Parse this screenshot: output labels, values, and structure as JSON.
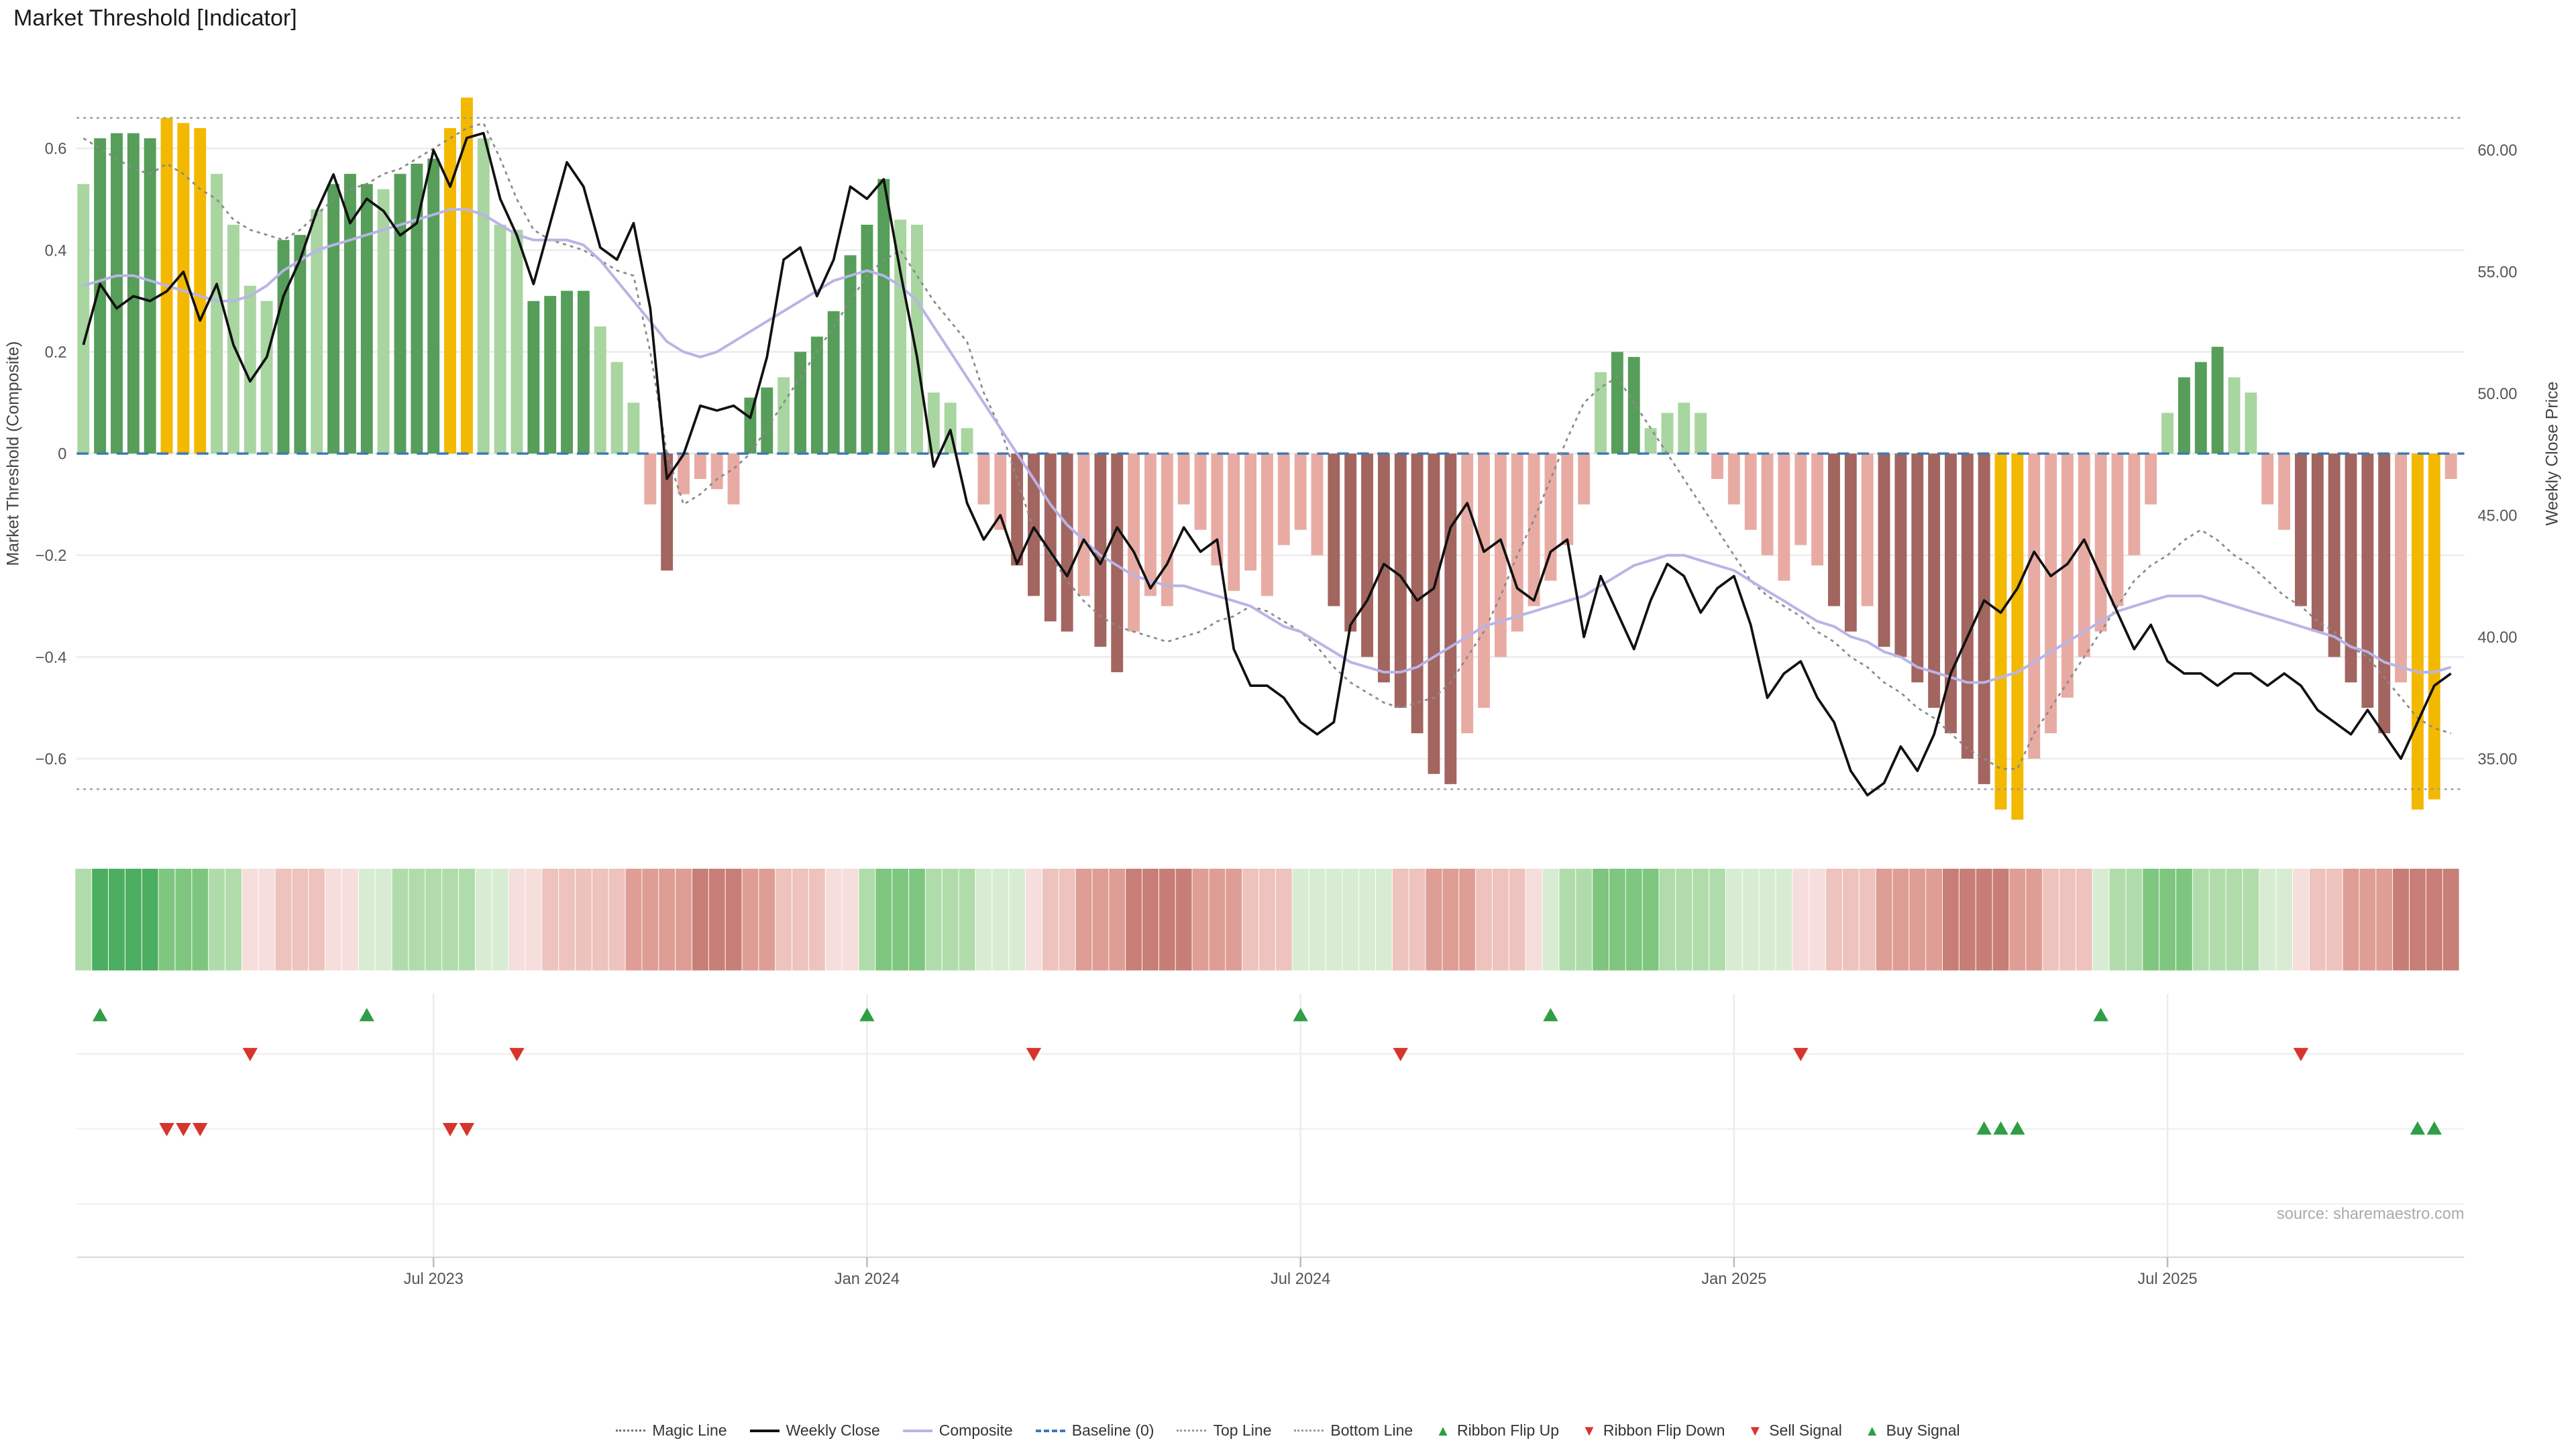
{
  "title": "Market Threshold [Indicator]",
  "source_note": "source: sharemaestro.com",
  "colors": {
    "bar_light_green": "#a8d5a0",
    "bar_dark_green": "#569e5a",
    "bar_gold": "#f3b800",
    "bar_light_red": "#e8aba3",
    "bar_dark_red": "#a3655f",
    "weekly_close": "#111111",
    "composite": "#b9b4e6",
    "magic": "#8a8a8a",
    "baseline": "#3d7ab5",
    "top_bottom": "#9a9a9a",
    "signal_green": "#2f9e44",
    "signal_red": "#d7342c",
    "ribbon_greens": [
      "#d8ecd4",
      "#b0dcab",
      "#7ec67f",
      "#4cae60"
    ],
    "ribbon_reds": [
      "#f5dedb",
      "#eec3bd",
      "#de9d95",
      "#c77e76"
    ],
    "grid": "#ececec",
    "axis_text": "#555555",
    "source_text": "#aaaaaa"
  },
  "chart_data": {
    "type": "combo",
    "x_unit": "week",
    "x_ticks": [
      {
        "label": "Jul 2023",
        "week": 21
      },
      {
        "label": "Jan 2024",
        "week": 47
      },
      {
        "label": "Jul 2024",
        "week": 73
      },
      {
        "label": "Jan 2025",
        "week": 99
      },
      {
        "label": "Jul 2025",
        "week": 125
      }
    ],
    "left_axis": {
      "title": "Market Threshold (Composite)",
      "ticks": [
        {
          "label": "0.6",
          "value": 0.6
        },
        {
          "label": "0.4",
          "value": 0.4
        },
        {
          "label": "0.2",
          "value": 0.2
        },
        {
          "label": "0",
          "value": 0
        },
        {
          "label": "−0.2",
          "value": -0.2
        },
        {
          "label": "−0.4",
          "value": -0.4
        },
        {
          "label": "−0.6",
          "value": -0.6
        }
      ]
    },
    "right_axis": {
      "title": "Weekly Close Price",
      "ticks": [
        {
          "label": "60.00",
          "value": 60
        },
        {
          "label": "55.00",
          "value": 55
        },
        {
          "label": "50.00",
          "value": 50
        },
        {
          "label": "45.00",
          "value": 45
        },
        {
          "label": "40.00",
          "value": 40
        },
        {
          "label": "35.00",
          "value": 35
        }
      ]
    },
    "top_line_value": 0.66,
    "bottom_line_value": -0.66,
    "baseline_value": 0,
    "series": {
      "threshold_bars": {
        "name": "Market Threshold",
        "values": [
          0.53,
          0.62,
          0.63,
          0.63,
          0.62,
          0.66,
          0.65,
          0.64,
          0.55,
          0.45,
          0.33,
          0.3,
          0.42,
          0.43,
          0.48,
          0.53,
          0.55,
          0.53,
          0.52,
          0.55,
          0.57,
          0.58,
          0.64,
          0.7,
          0.62,
          0.45,
          0.44,
          0.3,
          0.31,
          0.32,
          0.32,
          0.25,
          0.18,
          0.1,
          -0.1,
          -0.23,
          -0.08,
          -0.05,
          -0.07,
          -0.1,
          0.11,
          0.13,
          0.15,
          0.2,
          0.23,
          0.28,
          0.39,
          0.45,
          0.54,
          0.46,
          0.45,
          0.12,
          0.1,
          0.05,
          -0.1,
          -0.15,
          -0.22,
          -0.28,
          -0.33,
          -0.35,
          -0.28,
          -0.38,
          -0.43,
          -0.35,
          -0.28,
          -0.3,
          -0.1,
          -0.15,
          -0.22,
          -0.27,
          -0.23,
          -0.28,
          -0.18,
          -0.15,
          -0.2,
          -0.3,
          -0.35,
          -0.4,
          -0.45,
          -0.5,
          -0.55,
          -0.63,
          -0.65,
          -0.55,
          -0.5,
          -0.4,
          -0.35,
          -0.3,
          -0.25,
          -0.18,
          -0.1,
          0.16,
          0.2,
          0.19,
          0.05,
          0.08,
          0.1,
          0.08,
          -0.05,
          -0.1,
          -0.15,
          -0.2,
          -0.25,
          -0.18,
          -0.22,
          -0.3,
          -0.35,
          -0.3,
          -0.38,
          -0.4,
          -0.45,
          -0.5,
          -0.55,
          -0.6,
          -0.65,
          -0.7,
          -0.72,
          -0.6,
          -0.55,
          -0.48,
          -0.4,
          -0.35,
          -0.3,
          -0.2,
          -0.1,
          0.08,
          0.15,
          0.18,
          0.21,
          0.15,
          0.12,
          -0.1,
          -0.15,
          -0.3,
          -0.35,
          -0.4,
          -0.45,
          -0.5,
          -0.55,
          -0.45,
          -0.7,
          -0.68,
          -0.05
        ],
        "colors": [
          "lg",
          "dg",
          "dg",
          "dg",
          "dg",
          "gold",
          "gold",
          "gold",
          "lg",
          "lg",
          "lg",
          "lg",
          "dg",
          "dg",
          "lg",
          "dg",
          "dg",
          "dg",
          "lg",
          "dg",
          "dg",
          "dg",
          "gold",
          "gold",
          "lg",
          "lg",
          "lg",
          "dg",
          "dg",
          "dg",
          "dg",
          "lg",
          "lg",
          "lg",
          "lr",
          "dr",
          "lr",
          "lr",
          "lr",
          "lr",
          "dg",
          "dg",
          "lg",
          "dg",
          "dg",
          "dg",
          "dg",
          "dg",
          "dg",
          "lg",
          "lg",
          "lg",
          "lg",
          "lg",
          "lr",
          "lr",
          "dr",
          "dr",
          "dr",
          "dr",
          "lr",
          "dr",
          "dr",
          "lr",
          "lr",
          "lr",
          "lr",
          "lr",
          "lr",
          "lr",
          "lr",
          "lr",
          "lr",
          "lr",
          "lr",
          "dr",
          "dr",
          "dr",
          "dr",
          "dr",
          "dr",
          "dr",
          "dr",
          "lr",
          "lr",
          "lr",
          "lr",
          "lr",
          "lr",
          "lr",
          "lr",
          "lg",
          "dg",
          "dg",
          "lg",
          "lg",
          "lg",
          "lg",
          "lr",
          "lr",
          "lr",
          "lr",
          "lr",
          "lr",
          "lr",
          "dr",
          "dr",
          "lr",
          "dr",
          "dr",
          "dr",
          "dr",
          "dr",
          "dr",
          "dr",
          "gold",
          "gold",
          "lr",
          "lr",
          "lr",
          "lr",
          "lr",
          "lr",
          "lr",
          "lr",
          "lg",
          "dg",
          "dg",
          "dg",
          "lg",
          "lg",
          "lr",
          "lr",
          "dr",
          "dr",
          "dr",
          "dr",
          "dr",
          "dr",
          "lr",
          "gold",
          "gold",
          "lr"
        ]
      },
      "weekly_close": {
        "name": "Weekly Close",
        "axis": "right",
        "values": [
          52.0,
          54.5,
          53.5,
          54.0,
          53.8,
          54.2,
          55.0,
          53.0,
          54.5,
          52.0,
          50.5,
          51.5,
          54.0,
          55.5,
          57.5,
          59.0,
          57.0,
          58.0,
          57.5,
          56.5,
          57.0,
          60.0,
          58.5,
          60.5,
          60.7,
          58.0,
          56.5,
          54.5,
          57.0,
          59.5,
          58.5,
          56.0,
          55.5,
          57.0,
          53.5,
          46.5,
          47.5,
          49.5,
          49.3,
          49.5,
          49.0,
          51.5,
          55.5,
          56.0,
          54.0,
          55.5,
          58.5,
          58.0,
          58.8,
          55.0,
          51.5,
          47.0,
          48.5,
          45.5,
          44.0,
          45.0,
          43.0,
          44.5,
          43.5,
          42.5,
          44.0,
          43.0,
          44.5,
          43.5,
          42.0,
          43.0,
          44.5,
          43.5,
          44.0,
          39.5,
          38.0,
          38.0,
          37.5,
          36.5,
          36.0,
          36.5,
          40.5,
          41.5,
          43.0,
          42.5,
          41.5,
          42.0,
          44.5,
          45.5,
          43.5,
          44.0,
          42.0,
          41.5,
          43.5,
          44.0,
          40.0,
          42.5,
          41.0,
          39.5,
          41.5,
          43.0,
          42.5,
          41.0,
          42.0,
          42.5,
          40.5,
          37.5,
          38.5,
          39.0,
          37.5,
          36.5,
          34.5,
          33.5,
          34.0,
          35.5,
          34.5,
          36.0,
          38.5,
          40.0,
          41.5,
          41.0,
          42.0,
          43.5,
          42.5,
          43.0,
          44.0,
          42.5,
          41.0,
          39.5,
          40.5,
          39.0,
          38.5,
          38.5,
          38.0,
          38.5,
          38.5,
          38.0,
          38.5,
          38.0,
          37.0,
          36.5,
          36.0,
          37.0,
          36.0,
          35.0,
          36.5,
          38.0,
          38.5
        ]
      },
      "composite": {
        "name": "Composite",
        "values": [
          0.33,
          0.34,
          0.35,
          0.35,
          0.34,
          0.33,
          0.32,
          0.31,
          0.3,
          0.3,
          0.31,
          0.33,
          0.36,
          0.38,
          0.4,
          0.41,
          0.42,
          0.43,
          0.44,
          0.45,
          0.46,
          0.47,
          0.48,
          0.48,
          0.47,
          0.45,
          0.43,
          0.42,
          0.42,
          0.42,
          0.41,
          0.38,
          0.34,
          0.3,
          0.26,
          0.22,
          0.2,
          0.19,
          0.2,
          0.22,
          0.24,
          0.26,
          0.28,
          0.3,
          0.32,
          0.34,
          0.35,
          0.36,
          0.35,
          0.33,
          0.3,
          0.25,
          0.2,
          0.15,
          0.1,
          0.05,
          0.0,
          -0.05,
          -0.1,
          -0.14,
          -0.17,
          -0.2,
          -0.22,
          -0.24,
          -0.25,
          -0.26,
          -0.26,
          -0.27,
          -0.28,
          -0.29,
          -0.3,
          -0.32,
          -0.34,
          -0.35,
          -0.37,
          -0.39,
          -0.41,
          -0.42,
          -0.43,
          -0.43,
          -0.42,
          -0.4,
          -0.38,
          -0.36,
          -0.34,
          -0.33,
          -0.32,
          -0.31,
          -0.3,
          -0.29,
          -0.28,
          -0.26,
          -0.24,
          -0.22,
          -0.21,
          -0.2,
          -0.2,
          -0.21,
          -0.22,
          -0.23,
          -0.25,
          -0.27,
          -0.29,
          -0.31,
          -0.33,
          -0.34,
          -0.36,
          -0.37,
          -0.39,
          -0.4,
          -0.42,
          -0.43,
          -0.44,
          -0.45,
          -0.45,
          -0.44,
          -0.43,
          -0.41,
          -0.39,
          -0.37,
          -0.35,
          -0.33,
          -0.31,
          -0.3,
          -0.29,
          -0.28,
          -0.28,
          -0.28,
          -0.29,
          -0.3,
          -0.31,
          -0.32,
          -0.33,
          -0.34,
          -0.35,
          -0.36,
          -0.38,
          -0.39,
          -0.41,
          -0.42,
          -0.43,
          -0.43,
          -0.42
        ]
      },
      "magic_line": {
        "name": "Magic Line",
        "values": [
          0.62,
          0.6,
          0.58,
          0.56,
          0.55,
          0.57,
          0.55,
          0.52,
          0.5,
          0.46,
          0.44,
          0.43,
          0.42,
          0.44,
          0.47,
          0.5,
          0.52,
          0.53,
          0.55,
          0.56,
          0.58,
          0.6,
          0.62,
          0.64,
          0.65,
          0.58,
          0.5,
          0.44,
          0.42,
          0.41,
          0.4,
          0.38,
          0.36,
          0.35,
          0.2,
          0.0,
          -0.1,
          -0.08,
          -0.05,
          -0.03,
          0.0,
          0.05,
          0.1,
          0.15,
          0.2,
          0.25,
          0.3,
          0.35,
          0.38,
          0.4,
          0.35,
          0.3,
          0.26,
          0.22,
          0.12,
          0.05,
          -0.05,
          -0.15,
          -0.2,
          -0.25,
          -0.29,
          -0.32,
          -0.34,
          -0.35,
          -0.36,
          -0.37,
          -0.36,
          -0.35,
          -0.33,
          -0.32,
          -0.3,
          -0.31,
          -0.33,
          -0.35,
          -0.38,
          -0.42,
          -0.45,
          -0.47,
          -0.49,
          -0.5,
          -0.49,
          -0.48,
          -0.45,
          -0.4,
          -0.35,
          -0.28,
          -0.2,
          -0.13,
          -0.05,
          0.03,
          0.1,
          0.13,
          0.15,
          0.1,
          0.05,
          0.0,
          -0.05,
          -0.1,
          -0.15,
          -0.2,
          -0.25,
          -0.28,
          -0.3,
          -0.32,
          -0.35,
          -0.37,
          -0.4,
          -0.42,
          -0.45,
          -0.47,
          -0.5,
          -0.52,
          -0.55,
          -0.58,
          -0.6,
          -0.62,
          -0.62,
          -0.55,
          -0.5,
          -0.45,
          -0.4,
          -0.35,
          -0.3,
          -0.25,
          -0.22,
          -0.2,
          -0.17,
          -0.15,
          -0.17,
          -0.2,
          -0.22,
          -0.25,
          -0.28,
          -0.3,
          -0.33,
          -0.35,
          -0.38,
          -0.4,
          -0.44,
          -0.48,
          -0.52,
          -0.54,
          -0.55
        ]
      },
      "ribbon": {
        "name": "Trend Ribbon",
        "values": [
          2,
          4,
          4,
          4,
          4,
          3,
          3,
          3,
          2,
          2,
          -1,
          -1,
          -2,
          -2,
          -2,
          -1,
          -1,
          1,
          1,
          2,
          2,
          2,
          2,
          2,
          1,
          1,
          -1,
          -1,
          -2,
          -2,
          -2,
          -2,
          -2,
          -3,
          -3,
          -3,
          -3,
          -4,
          -4,
          -4,
          -3,
          -3,
          -2,
          -2,
          -2,
          -1,
          -1,
          2,
          3,
          3,
          3,
          2,
          2,
          2,
          1,
          1,
          1,
          -1,
          -2,
          -2,
          -3,
          -3,
          -3,
          -4,
          -4,
          -4,
          -4,
          -3,
          -3,
          -3,
          -2,
          -2,
          -2,
          1,
          1,
          1,
          1,
          1,
          1,
          -2,
          -2,
          -3,
          -3,
          -3,
          -2,
          -2,
          -2,
          -1,
          1,
          2,
          2,
          3,
          3,
          3,
          3,
          2,
          2,
          2,
          2,
          1,
          1,
          1,
          1,
          -1,
          -1,
          -2,
          -2,
          -2,
          -3,
          -3,
          -3,
          -3,
          -4,
          -4,
          -4,
          -4,
          -3,
          -3,
          -2,
          -2,
          -2,
          1,
          2,
          2,
          3,
          3,
          3,
          2,
          2,
          2,
          2,
          1,
          1,
          -1,
          -2,
          -2,
          -3,
          -3,
          -3,
          -4,
          -4,
          -4,
          -4
        ]
      }
    },
    "signals": {
      "ribbon_flip_up_weeks": [
        1,
        17,
        47,
        73,
        88,
        121
      ],
      "ribbon_flip_down_weeks": [
        10,
        26,
        57,
        79,
        103,
        133
      ],
      "sell_signal_weeks": [
        5,
        6,
        7,
        22,
        23
      ],
      "buy_signal_weeks": [
        114,
        115,
        116,
        140,
        141
      ]
    }
  },
  "legend": {
    "items": [
      {
        "label": "Magic Line",
        "swatch": "magic"
      },
      {
        "label": "Weekly Close",
        "swatch": "close"
      },
      {
        "label": "Composite",
        "swatch": "composite"
      },
      {
        "label": "Baseline (0)",
        "swatch": "baseline"
      },
      {
        "label": "Top Line",
        "swatch": "top"
      },
      {
        "label": "Bottom Line",
        "swatch": "bottom"
      },
      {
        "label": "Ribbon Flip Up",
        "swatch": "flip-up"
      },
      {
        "label": "Ribbon Flip Down",
        "swatch": "flip-down"
      },
      {
        "label": "Sell Signal",
        "swatch": "sell"
      },
      {
        "label": "Buy Signal",
        "swatch": "buy"
      }
    ]
  }
}
